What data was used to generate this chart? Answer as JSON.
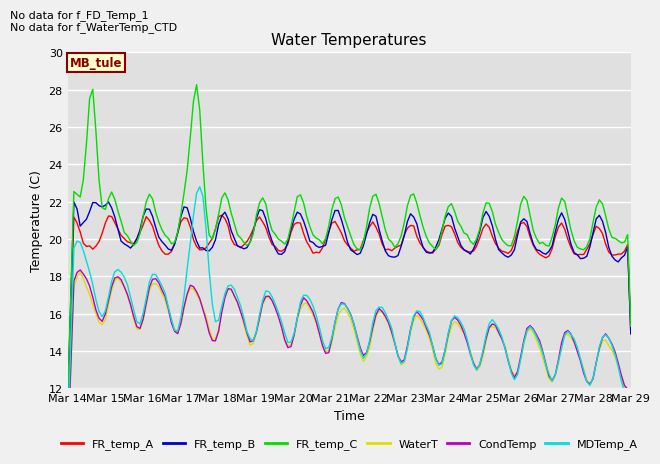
{
  "title": "Water Temperatures",
  "xlabel": "Time",
  "ylabel": "Temperature (C)",
  "ylim": [
    12,
    30
  ],
  "yticks": [
    12,
    14,
    16,
    18,
    20,
    22,
    24,
    26,
    28,
    30
  ],
  "xtick_labels": [
    "Mar 14",
    "Mar 15",
    "Mar 16",
    "Mar 17",
    "Mar 18",
    "Mar 19",
    "Mar 20",
    "Mar 21",
    "Mar 22",
    "Mar 23",
    "Mar 24",
    "Mar 25",
    "Mar 26",
    "Mar 27",
    "Mar 28",
    "Mar 29"
  ],
  "annotation_text": "No data for f_FD_Temp_1\nNo data for f_WaterTemp_CTD",
  "mb_tule_label": "MB_tule",
  "legend_entries": [
    "FR_temp_A",
    "FR_temp_B",
    "FR_temp_C",
    "WaterT",
    "CondTemp",
    "MDTemp_A"
  ],
  "legend_colors": [
    "#ff0000",
    "#0000cc",
    "#00dd00",
    "#dddd00",
    "#bb00bb",
    "#00dddd"
  ],
  "fig_facecolor": "#f0f0f0",
  "plot_facecolor": "#e0e0e0",
  "title_fontsize": 11,
  "axis_fontsize": 9,
  "tick_fontsize": 8
}
